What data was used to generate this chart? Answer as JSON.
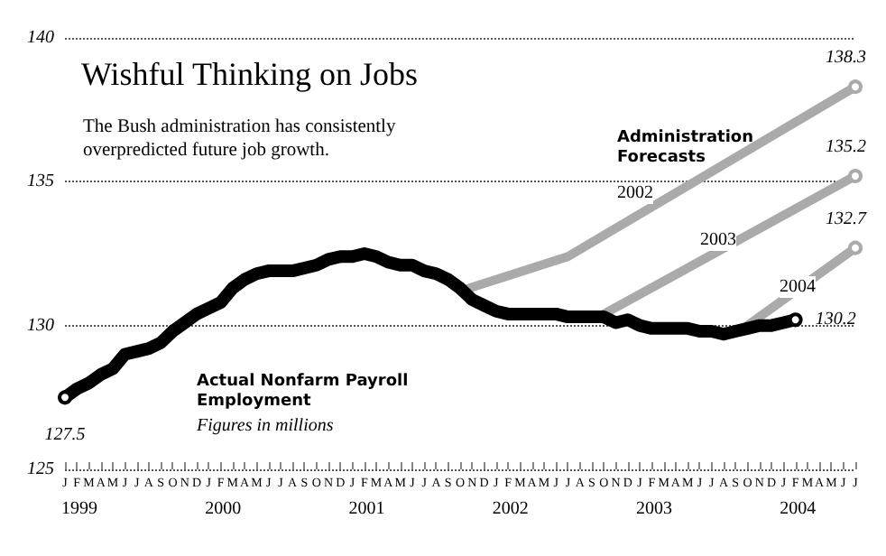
{
  "chart_data": {
    "type": "line",
    "title": "Wishful Thinking on Jobs",
    "subtitle": "The Bush administration has consistently overpredicted future job growth.",
    "annotations": [
      "Administration Forecasts",
      "Figures in millions",
      "1999",
      "2000",
      "2001",
      "2002",
      "2003",
      "2004"
    ],
    "categories": [
      "J",
      "F",
      "M",
      "A",
      "M",
      "J",
      "J",
      "A",
      "S",
      "O",
      "N",
      "D",
      "J",
      "F",
      "M",
      "A",
      "M",
      "J",
      "J",
      "A",
      "S",
      "O",
      "N",
      "D",
      "J",
      "F",
      "M",
      "A",
      "M",
      "J",
      "J",
      "A",
      "S",
      "O",
      "N",
      "D",
      "J",
      "F",
      "M",
      "A",
      "M",
      "J",
      "J",
      "A",
      "S",
      "O",
      "N",
      "D",
      "J",
      "F",
      "M",
      "A",
      "M",
      "J",
      "J",
      "A",
      "S",
      "O",
      "N",
      "D",
      "J",
      "F",
      "M",
      "A",
      "M",
      "J",
      "J"
    ],
    "ylim": [
      125,
      140
    ],
    "yticks": [
      125,
      130,
      135,
      140
    ],
    "grid": "y",
    "series": [
      {
        "name": "Actual Nonfarm Payroll Employment",
        "color": "#000000",
        "values": [
          127.5,
          127.8,
          128.0,
          128.3,
          128.5,
          129.0,
          129.1,
          129.2,
          129.4,
          129.8,
          130.1,
          130.4,
          130.6,
          130.8,
          131.3,
          131.6,
          131.8,
          131.9,
          131.9,
          131.9,
          132.0,
          132.1,
          132.3,
          132.4,
          132.4,
          132.5,
          132.4,
          132.2,
          132.1,
          132.1,
          131.9,
          131.8,
          131.6,
          131.3,
          130.9,
          130.7,
          130.5,
          130.4,
          130.4,
          130.4,
          130.4,
          130.4,
          130.3,
          130.3,
          130.3,
          130.3,
          130.1,
          130.2,
          130.0,
          129.9,
          129.9,
          129.9,
          129.9,
          129.8,
          129.8,
          129.7,
          129.8,
          129.9,
          130.0,
          130.0,
          130.1,
          130.2,
          null,
          null,
          null,
          null,
          null
        ],
        "value_labels": [
          "127.5",
          null,
          null,
          null,
          null,
          null,
          null,
          null,
          null,
          null,
          null,
          null,
          null,
          null,
          null,
          null,
          null,
          null,
          null,
          null,
          null,
          null,
          null,
          null,
          null,
          null,
          null,
          null,
          null,
          null,
          null,
          null,
          null,
          null,
          null,
          null,
          null,
          null,
          null,
          null,
          null,
          null,
          null,
          null,
          null,
          null,
          null,
          null,
          null,
          null,
          null,
          null,
          null,
          null,
          null,
          null,
          null,
          null,
          null,
          null,
          null,
          "130.2",
          null,
          null,
          null,
          null,
          null
        ]
      },
      {
        "name": "2002",
        "color": "#aaaaaa",
        "values": [
          null,
          null,
          null,
          null,
          null,
          null,
          null,
          null,
          null,
          null,
          null,
          null,
          null,
          null,
          null,
          null,
          null,
          null,
          null,
          null,
          null,
          null,
          null,
          null,
          null,
          null,
          null,
          null,
          null,
          null,
          null,
          null,
          null,
          131.2,
          null,
          null,
          null,
          null,
          null,
          null,
          null,
          null,
          132.4,
          null,
          null,
          null,
          null,
          null,
          null,
          null,
          null,
          null,
          null,
          null,
          null,
          null,
          null,
          null,
          null,
          null,
          null,
          null,
          null,
          null,
          null,
          null,
          138.3
        ],
        "value_labels": [
          null,
          null,
          null,
          null,
          null,
          null,
          null,
          null,
          null,
          null,
          null,
          null,
          null,
          null,
          null,
          null,
          null,
          null,
          null,
          null,
          null,
          null,
          null,
          null,
          null,
          null,
          null,
          null,
          null,
          null,
          null,
          null,
          null,
          null,
          null,
          null,
          null,
          null,
          null,
          null,
          null,
          null,
          null,
          null,
          null,
          null,
          null,
          null,
          null,
          null,
          null,
          null,
          null,
          null,
          null,
          null,
          null,
          null,
          null,
          null,
          null,
          null,
          null,
          null,
          null,
          null,
          "138.3"
        ]
      },
      {
        "name": "2003",
        "color": "#aaaaaa",
        "values": [
          null,
          null,
          null,
          null,
          null,
          null,
          null,
          null,
          null,
          null,
          null,
          null,
          null,
          null,
          null,
          null,
          null,
          null,
          null,
          null,
          null,
          null,
          null,
          null,
          null,
          null,
          null,
          null,
          null,
          null,
          null,
          null,
          null,
          null,
          null,
          null,
          null,
          null,
          null,
          null,
          null,
          null,
          null,
          null,
          null,
          130.4,
          null,
          null,
          null,
          null,
          null,
          null,
          null,
          null,
          null,
          null,
          null,
          null,
          null,
          null,
          null,
          null,
          null,
          null,
          null,
          null,
          135.2
        ],
        "value_labels": [
          null,
          null,
          null,
          null,
          null,
          null,
          null,
          null,
          null,
          null,
          null,
          null,
          null,
          null,
          null,
          null,
          null,
          null,
          null,
          null,
          null,
          null,
          null,
          null,
          null,
          null,
          null,
          null,
          null,
          null,
          null,
          null,
          null,
          null,
          null,
          null,
          null,
          null,
          null,
          null,
          null,
          null,
          null,
          null,
          null,
          null,
          null,
          null,
          null,
          null,
          null,
          null,
          null,
          null,
          null,
          null,
          null,
          null,
          null,
          null,
          null,
          null,
          null,
          null,
          null,
          null,
          "135.2"
        ]
      },
      {
        "name": "2004",
        "color": "#aaaaaa",
        "values": [
          null,
          null,
          null,
          null,
          null,
          null,
          null,
          null,
          null,
          null,
          null,
          null,
          null,
          null,
          null,
          null,
          null,
          null,
          null,
          null,
          null,
          null,
          null,
          null,
          null,
          null,
          null,
          null,
          null,
          null,
          null,
          null,
          null,
          null,
          null,
          null,
          null,
          null,
          null,
          null,
          null,
          null,
          null,
          null,
          null,
          null,
          null,
          null,
          null,
          null,
          null,
          null,
          null,
          null,
          null,
          null,
          null,
          130.0,
          null,
          null,
          null,
          null,
          null,
          null,
          null,
          null,
          132.7
        ],
        "value_labels": [
          null,
          null,
          null,
          null,
          null,
          null,
          null,
          null,
          null,
          null,
          null,
          null,
          null,
          null,
          null,
          null,
          null,
          null,
          null,
          null,
          null,
          null,
          null,
          null,
          null,
          null,
          null,
          null,
          null,
          null,
          null,
          null,
          null,
          null,
          null,
          null,
          null,
          null,
          null,
          null,
          null,
          null,
          null,
          null,
          null,
          null,
          null,
          null,
          null,
          null,
          null,
          null,
          null,
          null,
          null,
          null,
          null,
          null,
          null,
          null,
          null,
          null,
          null,
          null,
          null,
          null,
          "132.7"
        ]
      }
    ]
  }
}
